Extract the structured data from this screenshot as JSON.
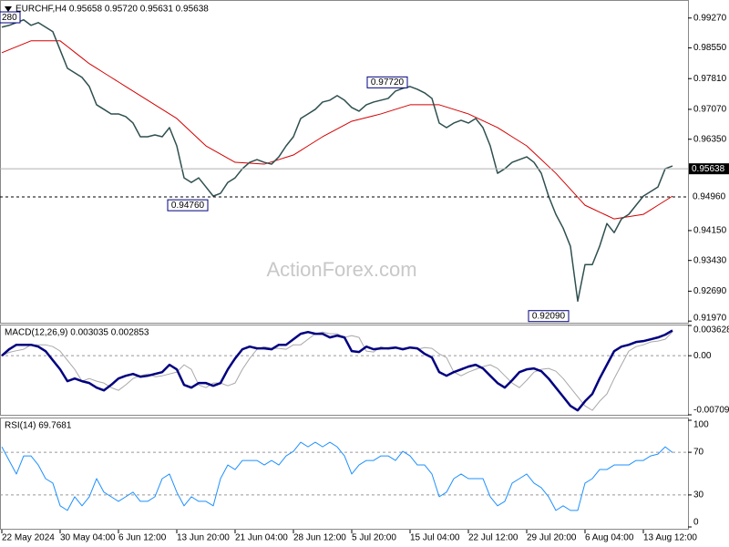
{
  "chart_data": [
    {
      "type": "line",
      "title": "EURCHF,H4  0.95658 0.95720 0.95631 0.95638",
      "watermark": "ActionForex.com",
      "clipped_label": "280",
      "ylim": [
        0.9193,
        0.9966
      ],
      "yticks": [
        {
          "value": 0.9927,
          "label": "0.99270"
        },
        {
          "value": 0.9855,
          "label": "0.98550"
        },
        {
          "value": 0.9781,
          "label": "0.97810"
        },
        {
          "value": 0.9707,
          "label": "0.97070"
        },
        {
          "value": 0.9635,
          "label": "0.96350"
        },
        {
          "value": 0.9415,
          "label": "0.94150"
        },
        {
          "value": 0.9343,
          "label": "0.93430"
        },
        {
          "value": 0.9269,
          "label": "0.92690"
        },
        {
          "value": 0.9197,
          "label": "0.91970"
        }
      ],
      "current_price": {
        "value": 0.95638,
        "label": "0.95638"
      },
      "level": {
        "value": 0.9496,
        "label": "0.94960"
      },
      "annotations": [
        {
          "value": 0.9476,
          "label": "0.94760"
        },
        {
          "value": 0.9772,
          "label": "0.97720"
        },
        {
          "value": 0.9209,
          "label": "0.92090"
        }
      ],
      "series": [
        {
          "color": "#2f4f4f",
          "values": [
            0.9905,
            0.99094,
            0.9916,
            0.99226,
            0.99094,
            0.9916,
            0.9905,
            0.9894,
            0.985,
            0.9806,
            0.9795,
            0.9784,
            0.9762,
            0.9718,
            0.9707,
            0.9696,
            0.9696,
            0.96894,
            0.9674,
            0.9641,
            0.9641,
            0.96454,
            0.9641,
            0.9663,
            0.9619,
            0.9542,
            0.9531,
            0.9542,
            0.952,
            0.9498,
            0.95046,
            0.9531,
            0.9542,
            0.9564,
            0.95794,
            0.9586,
            0.95794,
            0.9575,
            0.95926,
            0.9619,
            0.9641,
            0.9685,
            0.9696,
            0.9707,
            0.97246,
            0.9729,
            0.974,
            0.9729,
            0.97114,
            0.97026,
            0.9718,
            0.97246,
            0.9729,
            0.97334,
            0.9751,
            0.97576,
            0.9762,
            0.97554,
            0.97466,
            0.97334,
            0.9674,
            0.9663,
            0.9674,
            0.96806,
            0.9674,
            0.9685,
            0.9663,
            0.9619,
            0.9553,
            0.9564,
            0.95794,
            0.9586,
            0.95926,
            0.95794,
            0.9553,
            0.9498,
            0.9454,
            0.9421,
            0.9377,
            0.9245,
            0.9333,
            0.9333,
            0.9377,
            0.9432,
            0.941,
            0.9443,
            0.9454,
            0.9476,
            0.9498,
            0.9509,
            0.952,
            0.9564,
            0.95706
          ]
        },
        {
          "color": "#d40000",
          "values": [
            0.98434,
            0.98506,
            0.98577,
            0.98649,
            0.9872,
            0.9872,
            0.9872,
            0.9872,
            0.9872,
            0.98583,
            0.98445,
            0.98308,
            0.9817,
            0.9806,
            0.9795,
            0.9784,
            0.9773,
            0.9762,
            0.9751,
            0.974,
            0.9729,
            0.9718,
            0.9707,
            0.9696,
            0.9685,
            0.96685,
            0.9652,
            0.96355,
            0.9619,
            0.96091,
            0.95992,
            0.95893,
            0.95794,
            0.95783,
            0.95772,
            0.95761,
            0.9575,
            0.95805,
            0.9586,
            0.95915,
            0.9597,
            0.9608,
            0.9619,
            0.963,
            0.9641,
            0.96504,
            0.96597,
            0.96691,
            0.96784,
            0.96828,
            0.96872,
            0.96916,
            0.9696,
            0.97015,
            0.9707,
            0.97125,
            0.9718,
            0.9718,
            0.9718,
            0.9718,
            0.9718,
            0.97125,
            0.9707,
            0.97015,
            0.9696,
            0.96878,
            0.96795,
            0.96713,
            0.9663,
            0.9652,
            0.9641,
            0.963,
            0.9619,
            0.96025,
            0.9586,
            0.95695,
            0.9553,
            0.95338,
            0.95145,
            0.94953,
            0.9476,
            0.94678,
            0.94595,
            0.94513,
            0.9443,
            0.94458,
            0.94485,
            0.94513,
            0.9454,
            0.9465,
            0.9476,
            0.9487,
            0.9498
          ]
        }
      ]
    },
    {
      "type": "line",
      "title": "MACD(12,26,9) 0.003035 0.002853",
      "ylim": [
        -0.007093,
        0.003628
      ],
      "yticks": [
        0.003628,
        {
          "value": 0,
          "label": "0.00"
        },
        -0.007093
      ],
      "series": [
        {
          "color": "#000080",
          "values": [
            0,
            0.00077,
            0.00131,
            0.00131,
            0.00131,
            0.00109,
            0.00055,
            -0.00055,
            -0.00164,
            -0.00306,
            -0.00274,
            -0.00306,
            -0.00328,
            -0.00383,
            -0.00416,
            -0.0035,
            -0.00274,
            -0.00241,
            -0.00219,
            -0.00252,
            -0.00241,
            -0.00219,
            -0.00197,
            -0.00109,
            -0.00164,
            -0.0035,
            -0.00383,
            -0.00328,
            -0.00328,
            -0.00361,
            -0.00328,
            -0.00164,
            -0.00033,
            0.00077,
            0.00109,
            0.00088,
            0.00088,
            0.00077,
            0.00131,
            0.00131,
            0.00197,
            0.00263,
            0.00284,
            0.00263,
            0.00263,
            0.00219,
            0.00241,
            0.00219,
            0.00055,
            0.00044,
            0.00109,
            0.00077,
            0.00088,
            0.00088,
            0.00098,
            0.00077,
            0.00098,
            0.00088,
            0.00022,
            -0.00022,
            -0.00197,
            -0.00241,
            -0.00197,
            -0.00164,
            -0.00131,
            -0.00109,
            -0.00153,
            -0.00241,
            -0.00328,
            -0.00383,
            -0.00295,
            -0.00197,
            -0.00164,
            -0.00153,
            -0.00186,
            -0.00274,
            -0.00383,
            -0.00492,
            -0.00602,
            -0.00656,
            -0.00547,
            -0.00459,
            -0.00274,
            -0.00109,
            0.00055,
            0.00109,
            0.00131,
            0.00164,
            0.00175,
            0.00197,
            0.00219,
            0.00252,
            0.003035
          ]
        },
        {
          "color": "#a8a8a8",
          "values": [
            0,
            0.0004,
            0.0006,
            0.00077,
            0.00131,
            0.00131,
            0.00131,
            0.00109,
            0.00055,
            -0.00055,
            -0.00164,
            -0.00306,
            -0.00274,
            -0.00306,
            -0.00328,
            -0.00383,
            -0.00416,
            -0.0035,
            -0.00274,
            -0.00241,
            -0.00219,
            -0.00252,
            -0.00241,
            -0.00219,
            -0.00197,
            -0.00109,
            -0.00164,
            -0.0035,
            -0.00383,
            -0.00328,
            -0.00328,
            -0.00361,
            -0.00328,
            -0.00164,
            -0.00033,
            0.00077,
            0.00109,
            0.00088,
            0.00088,
            0.00077,
            0.00131,
            0.00131,
            0.00197,
            0.00263,
            0.00284,
            0.00263,
            0.00263,
            0.00219,
            0.00241,
            0.00219,
            0.00055,
            0.00044,
            0.00109,
            0.00077,
            0.00088,
            0.00088,
            0.00098,
            0.00077,
            0.00098,
            0.00088,
            0.00022,
            -0.00022,
            -0.00197,
            -0.00241,
            -0.00197,
            -0.00164,
            -0.00131,
            -0.00109,
            -0.00153,
            -0.00241,
            -0.00328,
            -0.00383,
            -0.00295,
            -0.00197,
            -0.00164,
            -0.00153,
            -0.00186,
            -0.00274,
            -0.00383,
            -0.00492,
            -0.00602,
            -0.00656,
            -0.00547,
            -0.00459,
            -0.00274,
            -0.00109,
            0.00055,
            0.00109,
            0.00131,
            0.00164,
            0.00175,
            0.00197,
            0.002853
          ]
        }
      ]
    },
    {
      "type": "line",
      "title": "RSI(14) 69.7681",
      "ylim": [
        0,
        100
      ],
      "yticks": [
        0,
        30,
        70,
        100
      ],
      "categories": [
        "22 May 2024",
        null,
        null,
        null,
        null,
        null,
        null,
        null,
        "30 May 04:00",
        null,
        null,
        null,
        null,
        null,
        null,
        null,
        "6 Jun 12:00",
        null,
        null,
        null,
        null,
        null,
        null,
        null,
        "13 Jun 20:00",
        null,
        null,
        null,
        null,
        null,
        null,
        null,
        "21 Jun 04:00",
        null,
        null,
        null,
        null,
        null,
        null,
        null,
        "28 Jun 12:00",
        null,
        null,
        null,
        null,
        null,
        null,
        null,
        "5 Jul 20:00",
        null,
        null,
        null,
        null,
        null,
        null,
        null,
        "15 Jul 04:00",
        null,
        null,
        null,
        null,
        null,
        null,
        null,
        "22 Jul 12:00",
        null,
        null,
        null,
        null,
        null,
        null,
        null,
        "29 Jul 20:00",
        null,
        null,
        null,
        null,
        null,
        null,
        null,
        "6 Aug 04:00",
        null,
        null,
        null,
        null,
        null,
        null,
        null,
        "13 Aug 12:00",
        null,
        null,
        null,
        null
      ],
      "series": [
        {
          "color": "#1e90ff",
          "values": [
            75.1,
            62.3,
            49.6,
            66.6,
            66.6,
            58.1,
            45.3,
            41.1,
            19.8,
            15.5,
            28.3,
            19.8,
            28.3,
            45.3,
            32.6,
            28.3,
            24.0,
            28.3,
            32.6,
            24.0,
            24.0,
            28.3,
            45.3,
            49.6,
            32.6,
            19.8,
            28.3,
            24.0,
            24.0,
            19.8,
            45.3,
            58.1,
            53.8,
            62.3,
            62.3,
            62.3,
            58.1,
            62.3,
            58.1,
            66.6,
            70.9,
            79.4,
            75.1,
            79.4,
            75.1,
            79.4,
            75.1,
            66.6,
            49.6,
            58.1,
            62.3,
            62.3,
            66.6,
            66.6,
            62.3,
            70.9,
            66.6,
            58.1,
            58.1,
            49.6,
            28.3,
            32.6,
            45.3,
            49.6,
            45.3,
            45.3,
            45.3,
            28.3,
            19.8,
            24.0,
            41.1,
            45.3,
            49.6,
            41.1,
            36.8,
            28.3,
            15.5,
            19.8,
            15.5,
            15.5,
            41.1,
            45.3,
            53.8,
            53.8,
            58.1,
            58.1,
            58.1,
            62.3,
            62.3,
            66.6,
            68.3,
            75.1,
            69.7681
          ]
        }
      ]
    }
  ]
}
